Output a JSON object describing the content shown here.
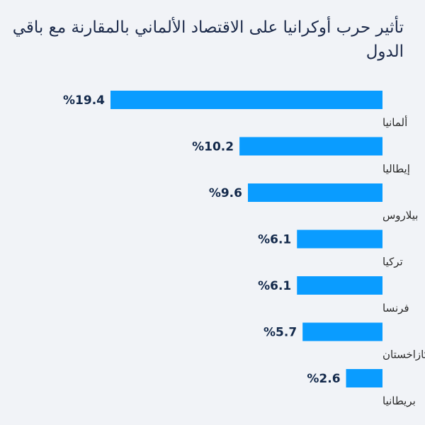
{
  "chart_data": {
    "type": "bar",
    "orientation": "horizontal",
    "title": "تأثير حرب أوكرانيا على الاقتصاد الألماني بالمقارنة مع باقي الدول",
    "categories": [
      "ألمانيا",
      "إيطاليا",
      "بيلاروس",
      "تركيا",
      "فرنسا",
      "كازاخستان",
      "بريطانيا"
    ],
    "values": [
      19.4,
      10.2,
      9.6,
      6.1,
      6.1,
      5.7,
      2.6
    ],
    "value_labels": [
      "%19.4",
      "%10.2",
      "%9.6",
      "%6.1",
      "%6.1",
      "%5.7",
      "%2.6"
    ],
    "bar_color": "#0a9cff",
    "xlim": [
      0,
      19.4
    ],
    "grid": false
  }
}
